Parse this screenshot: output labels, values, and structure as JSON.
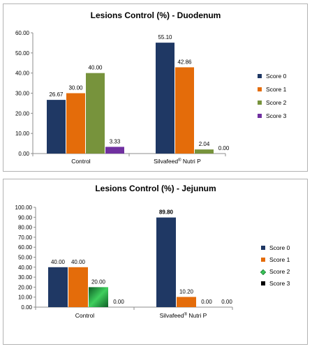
{
  "chart_data": [
    {
      "type": "bar",
      "title": "Lesions Control (%) - Duodenum",
      "categories": [
        {
          "name": "Control",
          "trademark": ""
        },
        {
          "name": "Silvafeed",
          "trademark": "®",
          "suffix": " Nutri P"
        }
      ],
      "series": [
        {
          "name": "Score 0",
          "values": [
            26.67,
            55.1
          ],
          "labels": [
            "26.67",
            "55.10"
          ]
        },
        {
          "name": "Score 1",
          "values": [
            30.0,
            42.86
          ],
          "labels": [
            "30.00",
            "42.86"
          ]
        },
        {
          "name": "Score 2",
          "values": [
            40.0,
            2.04
          ],
          "labels": [
            "40.00",
            "2.04"
          ]
        },
        {
          "name": "Score 3",
          "values": [
            3.33,
            0.0
          ],
          "labels": [
            "3.33",
            "0.00"
          ]
        }
      ],
      "colors": [
        "#1f3864",
        "#e46c0a",
        "#77933c",
        "#7030a0"
      ],
      "ylim": [
        0,
        60
      ],
      "yticks": [
        "0.00",
        "10.00",
        "20.00",
        "30.00",
        "40.00",
        "50.00",
        "60.00"
      ],
      "grid": false,
      "legend": "right",
      "xlabel": "",
      "ylabel": ""
    },
    {
      "type": "bar",
      "title": "Lesions Control (%) - Jejunum",
      "categories": [
        {
          "name": "Control",
          "trademark": ""
        },
        {
          "name": "Silvafeed",
          "trademark": "®",
          "suffix": " Nutri P"
        }
      ],
      "series": [
        {
          "name": "Score 0",
          "values": [
            40.0,
            89.8
          ],
          "labels": [
            "40.00",
            "89.80"
          ]
        },
        {
          "name": "Score 1",
          "values": [
            40.0,
            10.2
          ],
          "labels": [
            "40.00",
            "10.20"
          ]
        },
        {
          "name": "Score 2",
          "values": [
            20.0,
            0.0
          ],
          "labels": [
            "20.00",
            "0.00"
          ]
        },
        {
          "name": "Score 3",
          "values": [
            0.0,
            0.0
          ],
          "labels": [
            "0.00",
            "0.00"
          ]
        }
      ],
      "colors": [
        "#1f3864",
        "#e46c0a",
        "#1fa83c",
        "#000000"
      ],
      "ylim": [
        0,
        100
      ],
      "yticks": [
        "0.00",
        "10.00",
        "20.00",
        "30.00",
        "40.00",
        "50.00",
        "60.00",
        "70.00",
        "80.00",
        "90.00",
        "100.00"
      ],
      "grid": false,
      "legend": "right",
      "xlabel": "",
      "ylabel": ""
    }
  ]
}
